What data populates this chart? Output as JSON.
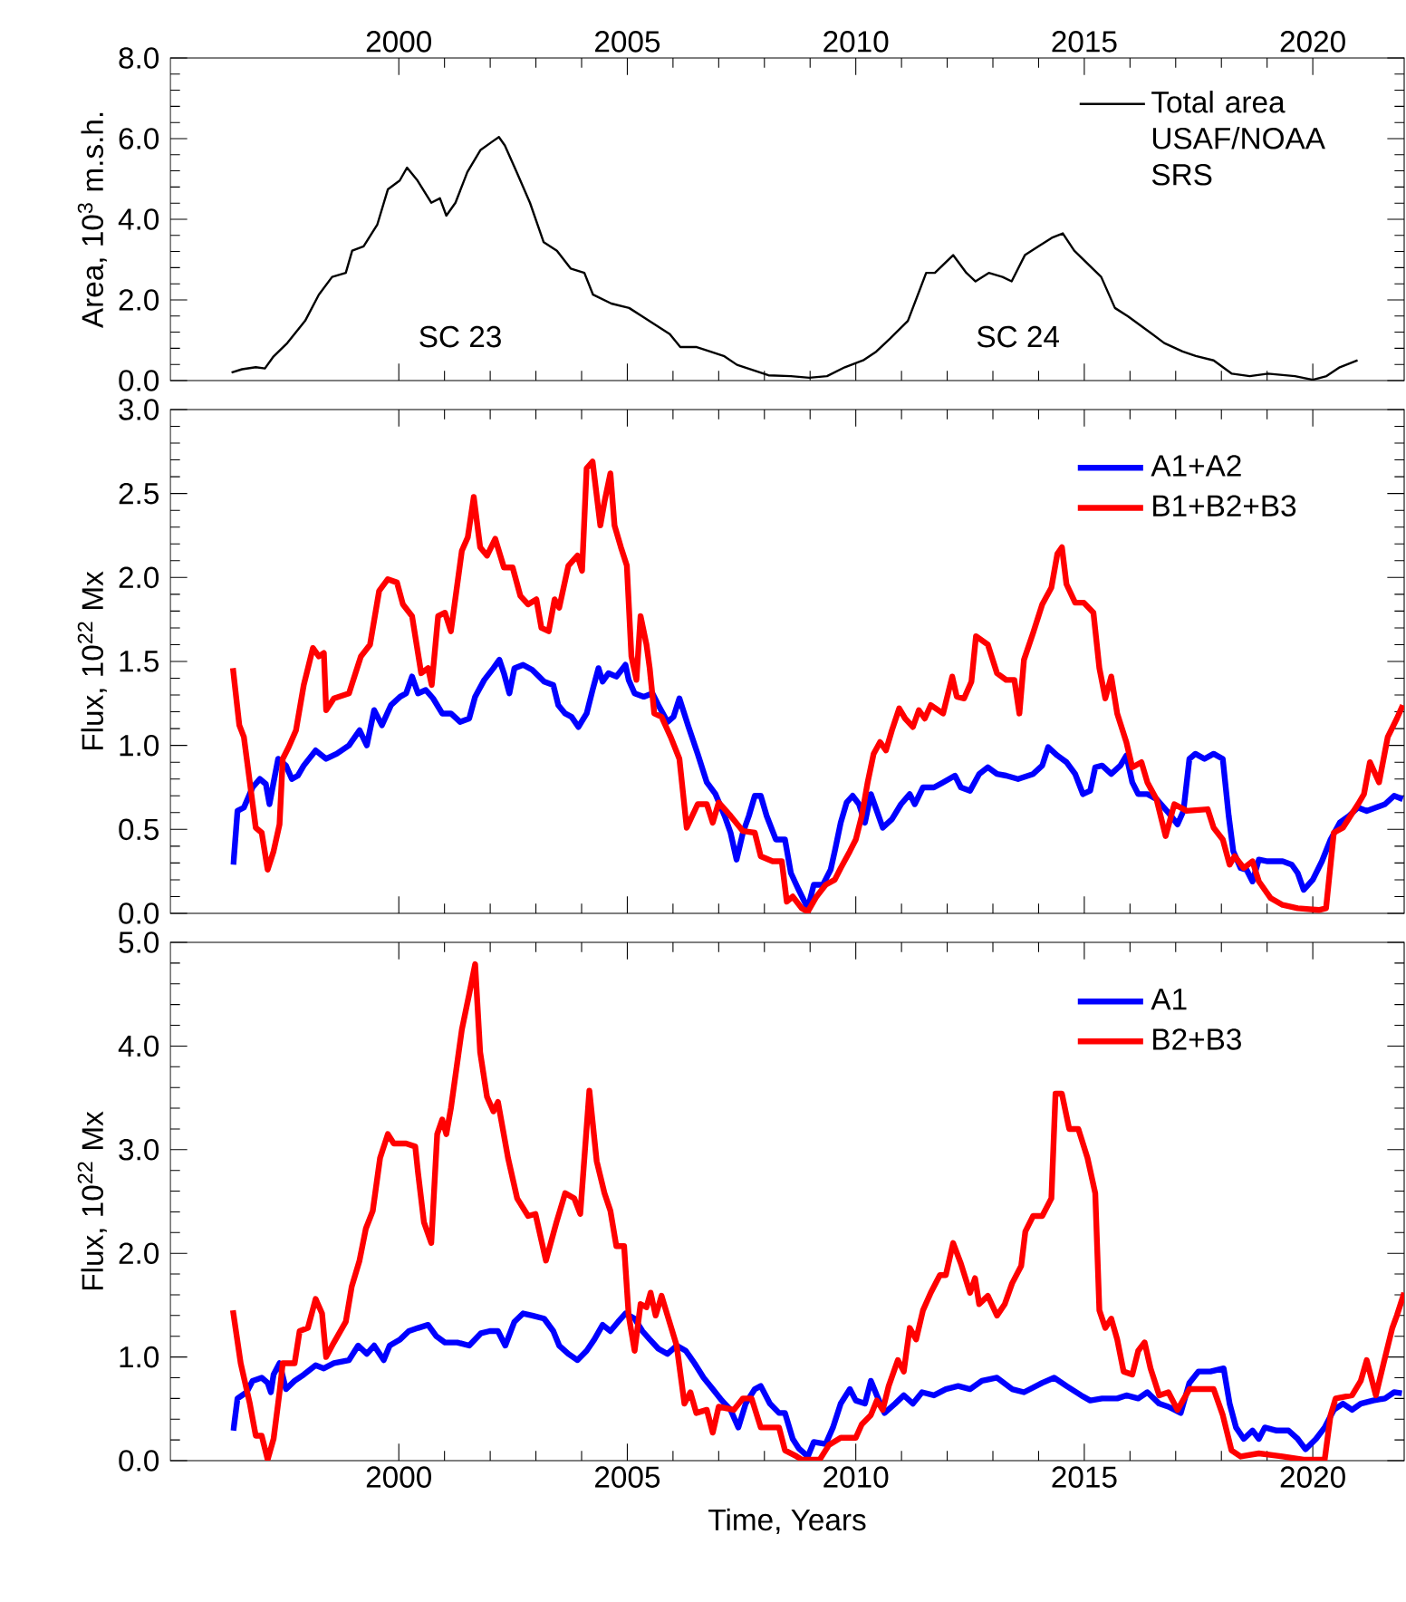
{
  "chart_data": [
    {
      "type": "line",
      "ylabel": "Area, 10$^{3}$ m.s.h.",
      "xlim": [
        1995,
        2022
      ],
      "xticks": [
        2000,
        2005,
        2010,
        2015,
        2020
      ],
      "ylim": [
        0,
        8
      ],
      "yticks": [
        {
          "value": 0,
          "label": "0.0"
        },
        {
          "value": 2,
          "label": "2.0"
        },
        {
          "value": 4,
          "label": "4.0"
        },
        {
          "value": 6,
          "label": "6.0"
        },
        {
          "value": 8,
          "label": "8.0"
        }
      ],
      "legend": "top right",
      "annotations": [
        "SC 23",
        "SC 24"
      ],
      "series": [
        {
          "name": "Total area USAF/NOAA SRS",
          "color": "#000000",
          "x": [
            1996.34,
            1996.57,
            1996.87,
            1997.07,
            1997.26,
            1997.56,
            1997.95,
            1998.25,
            1998.54,
            1998.84,
            1998.98,
            1999.23,
            1999.53,
            1999.76,
            2000.02,
            2000.18,
            2000.41,
            2000.71,
            2000.9,
            2001.04,
            2001.24,
            2001.5,
            2001.79,
            2002.05,
            2002.19,
            2002.32,
            2002.58,
            2002.87,
            2003.17,
            2003.46,
            2003.76,
            2004.06,
            2004.25,
            2004.65,
            2005.04,
            2005.33,
            2005.63,
            2005.93,
            2006.16,
            2006.52,
            2006.81,
            2007.11,
            2007.4,
            2007.7,
            2008.09,
            2008.58,
            2008.98,
            2009.37,
            2009.76,
            2010.16,
            2010.45,
            2010.75,
            2011.14,
            2011.54,
            2011.73,
            2012.13,
            2012.42,
            2012.62,
            2012.91,
            2013.21,
            2013.41,
            2013.7,
            2014.0,
            2014.29,
            2014.53,
            2014.78,
            2015.08,
            2015.37,
            2015.67,
            2015.96,
            2016.36,
            2016.75,
            2017.15,
            2017.44,
            2017.83,
            2018.23,
            2018.62,
            2019.02,
            2019.61,
            2020.0,
            2020.3,
            2020.59,
            2020.98
          ],
          "values": [
            0.2,
            0.28,
            0.33,
            0.3,
            0.6,
            0.93,
            1.48,
            2.13,
            2.57,
            2.67,
            3.22,
            3.33,
            3.87,
            4.74,
            4.96,
            5.28,
            4.96,
            4.41,
            4.52,
            4.09,
            4.41,
            5.17,
            5.72,
            5.93,
            6.04,
            5.83,
            5.17,
            4.41,
            3.43,
            3.22,
            2.78,
            2.67,
            2.13,
            1.91,
            1.8,
            1.59,
            1.37,
            1.15,
            0.83,
            0.83,
            0.72,
            0.61,
            0.39,
            0.28,
            0.13,
            0.11,
            0.07,
            0.11,
            0.33,
            0.5,
            0.72,
            1.04,
            1.48,
            2.67,
            2.67,
            3.11,
            2.67,
            2.46,
            2.67,
            2.57,
            2.46,
            3.11,
            3.33,
            3.54,
            3.65,
            3.22,
            2.89,
            2.57,
            1.8,
            1.59,
            1.26,
            0.93,
            0.72,
            0.61,
            0.5,
            0.17,
            0.11,
            0.17,
            0.11,
            0.02,
            0.11,
            0.33,
            0.5
          ]
        }
      ]
    },
    {
      "type": "line",
      "ylabel": "Flux, 10$^{22}$ Mx",
      "xlim": [
        1995,
        2022
      ],
      "xticks": [
        2000,
        2005,
        2010,
        2015,
        2020
      ],
      "tick_labels": "y",
      "ylim": [
        0,
        3
      ],
      "yticks": [
        {
          "value": 0,
          "label": "0.0"
        },
        {
          "value": 0.5,
          "label": "0.5"
        },
        {
          "value": 1,
          "label": "1.0"
        },
        {
          "value": 1.5,
          "label": "1.5"
        },
        {
          "value": 2,
          "label": "2.0"
        },
        {
          "value": 2.5,
          "label": "2.5"
        },
        {
          "value": 3,
          "label": "3.0"
        }
      ],
      "legend": "top right",
      "series": [
        {
          "name": "A1+A2",
          "color": "#0000ff",
          "x": [
            1996.38,
            1996.47,
            1996.61,
            1996.8,
            1996.96,
            1997.09,
            1997.17,
            1997.26,
            1997.36,
            1997.53,
            1997.66,
            1997.79,
            1997.92,
            1998.18,
            1998.41,
            1998.64,
            1998.91,
            1999.14,
            1999.3,
            1999.46,
            1999.63,
            1999.83,
            2000.03,
            2000.16,
            2000.29,
            2000.42,
            2000.59,
            2000.75,
            2000.95,
            2001.14,
            2001.34,
            2001.54,
            2001.67,
            2001.87,
            2002.07,
            2002.2,
            2002.3,
            2002.42,
            2002.53,
            2002.72,
            2002.92,
            2003.18,
            2003.38,
            2003.49,
            2003.64,
            2003.78,
            2003.93,
            2004.11,
            2004.24,
            2004.37,
            2004.46,
            2004.59,
            2004.76,
            2004.96,
            2005.03,
            2005.16,
            2005.36,
            2005.55,
            2005.68,
            2005.88,
            2006.01,
            2006.14,
            2006.34,
            2006.54,
            2006.74,
            2006.93,
            2007.13,
            2007.26,
            2007.39,
            2007.53,
            2007.66,
            2007.79,
            2007.92,
            2008.05,
            2008.25,
            2008.45,
            2008.58,
            2008.75,
            2008.95,
            2009.08,
            2009.28,
            2009.45,
            2009.54,
            2009.67,
            2009.8,
            2009.93,
            2010.07,
            2010.2,
            2010.33,
            2010.46,
            2010.59,
            2010.79,
            2010.99,
            2011.18,
            2011.29,
            2011.47,
            2011.71,
            2011.91,
            2012.17,
            2012.3,
            2012.5,
            2012.7,
            2012.89,
            2013.09,
            2013.29,
            2013.55,
            2013.88,
            2014.08,
            2014.21,
            2014.41,
            2014.61,
            2014.8,
            2014.97,
            2015.13,
            2015.24,
            2015.39,
            2015.59,
            2015.79,
            2015.92,
            2016.05,
            2016.18,
            2016.38,
            2016.58,
            2016.84,
            2017.04,
            2017.17,
            2017.3,
            2017.43,
            2017.63,
            2017.83,
            2018.03,
            2018.16,
            2018.26,
            2018.42,
            2018.55,
            2018.68,
            2018.82,
            2019.01,
            2019.34,
            2019.54,
            2019.67,
            2019.8,
            2020.0,
            2020.2,
            2020.39,
            2020.59,
            2020.79,
            2020.99,
            2021.18,
            2021.38,
            2021.58,
            2021.78,
            2021.97
          ],
          "values": [
            0.29,
            0.61,
            0.63,
            0.75,
            0.8,
            0.77,
            0.65,
            0.78,
            0.92,
            0.88,
            0.8,
            0.82,
            0.88,
            0.97,
            0.92,
            0.95,
            1.0,
            1.09,
            1.0,
            1.21,
            1.12,
            1.24,
            1.29,
            1.31,
            1.41,
            1.31,
            1.33,
            1.28,
            1.19,
            1.19,
            1.14,
            1.16,
            1.29,
            1.39,
            1.46,
            1.51,
            1.43,
            1.31,
            1.46,
            1.48,
            1.45,
            1.38,
            1.36,
            1.24,
            1.19,
            1.17,
            1.11,
            1.19,
            1.33,
            1.46,
            1.38,
            1.43,
            1.41,
            1.48,
            1.39,
            1.31,
            1.29,
            1.31,
            1.24,
            1.14,
            1.17,
            1.28,
            1.11,
            0.95,
            0.78,
            0.71,
            0.58,
            0.48,
            0.32,
            0.48,
            0.58,
            0.7,
            0.7,
            0.58,
            0.44,
            0.44,
            0.24,
            0.14,
            0.03,
            0.17,
            0.17,
            0.26,
            0.37,
            0.54,
            0.66,
            0.7,
            0.65,
            0.54,
            0.71,
            0.61,
            0.51,
            0.56,
            0.65,
            0.71,
            0.65,
            0.75,
            0.75,
            0.78,
            0.82,
            0.75,
            0.73,
            0.83,
            0.87,
            0.83,
            0.82,
            0.8,
            0.83,
            0.88,
            0.99,
            0.94,
            0.9,
            0.83,
            0.71,
            0.73,
            0.87,
            0.88,
            0.83,
            0.88,
            0.94,
            0.78,
            0.71,
            0.71,
            0.68,
            0.6,
            0.53,
            0.61,
            0.92,
            0.95,
            0.92,
            0.95,
            0.92,
            0.58,
            0.37,
            0.27,
            0.26,
            0.19,
            0.32,
            0.31,
            0.31,
            0.29,
            0.24,
            0.14,
            0.2,
            0.31,
            0.44,
            0.54,
            0.58,
            0.63,
            0.61,
            0.63,
            0.65,
            0.7,
            0.68
          ]
        },
        {
          "name": "B1+B2+B3",
          "color": "#ff0000",
          "x": [
            1996.37,
            1996.51,
            1996.61,
            1996.74,
            1996.87,
            1997.0,
            1997.13,
            1997.26,
            1997.39,
            1997.46,
            1997.59,
            1997.75,
            1997.92,
            1998.12,
            1998.25,
            1998.36,
            1998.41,
            1998.58,
            1998.91,
            1999.17,
            1999.37,
            1999.57,
            1999.76,
            1999.96,
            2000.09,
            2000.29,
            2000.49,
            2000.64,
            2000.72,
            2000.86,
            2001.01,
            2001.14,
            2001.38,
            2001.51,
            2001.64,
            2001.78,
            2001.93,
            2002.11,
            2002.3,
            2002.49,
            2002.66,
            2002.83,
            2003.01,
            2003.12,
            2003.28,
            2003.41,
            2003.51,
            2003.71,
            2003.91,
            2004.01,
            2004.11,
            2004.24,
            2004.41,
            2004.5,
            2004.63,
            2004.72,
            2004.86,
            2004.99,
            2005.09,
            2005.2,
            2005.29,
            2005.42,
            2005.49,
            2005.59,
            2005.75,
            2005.95,
            2006.14,
            2006.3,
            2006.54,
            2006.74,
            2006.87,
            2007.0,
            2007.26,
            2007.53,
            2007.79,
            2007.92,
            2008.18,
            2008.38,
            2008.49,
            2008.62,
            2008.82,
            2008.95,
            2009.14,
            2009.34,
            2009.54,
            2009.67,
            2009.87,
            2010.0,
            2010.13,
            2010.26,
            2010.39,
            2010.53,
            2010.66,
            2010.79,
            2010.95,
            2011.08,
            2011.25,
            2011.38,
            2011.51,
            2011.64,
            2011.91,
            2012.11,
            2012.21,
            2012.37,
            2012.53,
            2012.63,
            2012.89,
            2013.09,
            2013.29,
            2013.47,
            2013.58,
            2013.68,
            2013.88,
            2014.08,
            2014.28,
            2014.41,
            2014.51,
            2014.61,
            2014.8,
            2014.99,
            2015.2,
            2015.33,
            2015.46,
            2015.59,
            2015.72,
            2015.92,
            2016.05,
            2016.25,
            2016.38,
            2016.58,
            2016.78,
            2016.97,
            2017.24,
            2017.7,
            2017.83,
            2018.03,
            2018.18,
            2018.29,
            2018.49,
            2018.68,
            2018.82,
            2019.08,
            2019.34,
            2019.67,
            2020.13,
            2020.29,
            2020.46,
            2020.66,
            2020.99,
            2021.12,
            2021.25,
            2021.45,
            2021.64,
            2021.84,
            2021.97
          ],
          "values": [
            1.46,
            1.12,
            1.05,
            0.78,
            0.51,
            0.48,
            0.26,
            0.37,
            0.53,
            0.92,
            0.99,
            1.09,
            1.36,
            1.58,
            1.53,
            1.55,
            1.21,
            1.28,
            1.31,
            1.53,
            1.6,
            1.92,
            1.99,
            1.97,
            1.84,
            1.77,
            1.43,
            1.46,
            1.36,
            1.77,
            1.79,
            1.68,
            2.16,
            2.24,
            2.48,
            2.18,
            2.13,
            2.23,
            2.06,
            2.06,
            1.89,
            1.84,
            1.87,
            1.7,
            1.68,
            1.87,
            1.82,
            2.07,
            2.13,
            2.04,
            2.65,
            2.69,
            2.31,
            2.45,
            2.62,
            2.31,
            2.18,
            2.07,
            1.53,
            1.39,
            1.77,
            1.6,
            1.46,
            1.19,
            1.17,
            1.05,
            0.92,
            0.51,
            0.65,
            0.65,
            0.54,
            0.66,
            0.58,
            0.49,
            0.48,
            0.34,
            0.31,
            0.31,
            0.07,
            0.1,
            0.03,
            0.01,
            0.1,
            0.17,
            0.2,
            0.27,
            0.37,
            0.44,
            0.58,
            0.78,
            0.95,
            1.02,
            0.97,
            1.09,
            1.22,
            1.16,
            1.11,
            1.21,
            1.16,
            1.24,
            1.19,
            1.41,
            1.29,
            1.28,
            1.38,
            1.65,
            1.6,
            1.43,
            1.39,
            1.39,
            1.19,
            1.51,
            1.67,
            1.84,
            1.94,
            2.14,
            2.18,
            1.96,
            1.85,
            1.85,
            1.79,
            1.46,
            1.28,
            1.41,
            1.19,
            1.02,
            0.87,
            0.9,
            0.78,
            0.68,
            0.46,
            0.65,
            0.61,
            0.62,
            0.51,
            0.44,
            0.29,
            0.34,
            0.27,
            0.31,
            0.19,
            0.09,
            0.05,
            0.03,
            0.02,
            0.03,
            0.48,
            0.51,
            0.65,
            0.71,
            0.9,
            0.78,
            1.05,
            1.16,
            1.24
          ]
        }
      ]
    },
    {
      "type": "line",
      "ylabel": "Flux, 10$^{22}$ Mx",
      "xlabel": "Time, Years",
      "xlim": [
        1995,
        2022
      ],
      "xticks": [
        2000,
        2005,
        2010,
        2015,
        2020
      ],
      "ylim": [
        0,
        5
      ],
      "yticks": [
        {
          "value": 0,
          "label": "0.0"
        },
        {
          "value": 1,
          "label": "1.0"
        },
        {
          "value": 2,
          "label": "2.0"
        },
        {
          "value": 3,
          "label": "3.0"
        },
        {
          "value": 4,
          "label": "4.0"
        },
        {
          "value": 5,
          "label": "5.0"
        }
      ],
      "legend": "top right",
      "series": [
        {
          "name": "A1",
          "color": "#0000ff",
          "x": [
            1996.38,
            1996.47,
            1996.67,
            1996.8,
            1997.0,
            1997.13,
            1997.2,
            1997.26,
            1997.39,
            1997.53,
            1997.72,
            1997.92,
            1998.18,
            1998.36,
            1998.58,
            1998.91,
            1999.11,
            1999.3,
            1999.46,
            1999.67,
            1999.8,
            2000.03,
            2000.22,
            2000.42,
            2000.64,
            2000.82,
            2001.01,
            2001.28,
            2001.54,
            2001.8,
            2001.99,
            2002.17,
            2002.33,
            2002.53,
            2002.72,
            2002.92,
            2003.18,
            2003.38,
            2003.51,
            2003.71,
            2003.91,
            2004.11,
            2004.28,
            2004.46,
            2004.63,
            2004.8,
            2004.96,
            2005.16,
            2005.33,
            2005.49,
            2005.68,
            2005.88,
            2006.08,
            2006.28,
            2006.47,
            2006.67,
            2006.87,
            2007.07,
            2007.26,
            2007.43,
            2007.59,
            2007.79,
            2007.92,
            2008.12,
            2008.32,
            2008.45,
            2008.62,
            2008.75,
            2008.95,
            2009.08,
            2009.34,
            2009.5,
            2009.67,
            2009.87,
            2010.0,
            2010.2,
            2010.33,
            2010.46,
            2010.63,
            2010.86,
            2011.05,
            2011.25,
            2011.45,
            2011.71,
            2011.97,
            2012.24,
            2012.5,
            2012.76,
            2013.09,
            2013.42,
            2013.68,
            2014.08,
            2014.34,
            2014.61,
            2014.93,
            2015.13,
            2015.39,
            2015.72,
            2015.92,
            2016.18,
            2016.38,
            2016.64,
            2016.84,
            2017.11,
            2017.3,
            2017.5,
            2017.76,
            2018.05,
            2018.18,
            2018.32,
            2018.49,
            2018.68,
            2018.82,
            2018.95,
            2019.21,
            2019.47,
            2019.67,
            2019.84,
            2020.07,
            2020.26,
            2020.46,
            2020.66,
            2020.86,
            2021.05,
            2021.32,
            2021.58,
            2021.78,
            2021.95
          ],
          "values": [
            0.29,
            0.6,
            0.66,
            0.77,
            0.8,
            0.75,
            0.66,
            0.83,
            0.94,
            0.69,
            0.77,
            0.83,
            0.92,
            0.89,
            0.94,
            0.97,
            1.11,
            1.03,
            1.11,
            0.97,
            1.11,
            1.17,
            1.25,
            1.28,
            1.31,
            1.2,
            1.14,
            1.14,
            1.11,
            1.23,
            1.25,
            1.25,
            1.11,
            1.34,
            1.42,
            1.4,
            1.37,
            1.25,
            1.11,
            1.03,
            0.97,
            1.06,
            1.17,
            1.31,
            1.25,
            1.34,
            1.42,
            1.37,
            1.25,
            1.17,
            1.08,
            1.03,
            1.11,
            1.06,
            0.94,
            0.8,
            0.69,
            0.58,
            0.49,
            0.32,
            0.55,
            0.69,
            0.72,
            0.55,
            0.46,
            0.46,
            0.21,
            0.12,
            0.04,
            0.18,
            0.16,
            0.32,
            0.55,
            0.69,
            0.58,
            0.55,
            0.77,
            0.63,
            0.46,
            0.55,
            0.63,
            0.55,
            0.66,
            0.63,
            0.69,
            0.72,
            0.69,
            0.77,
            0.8,
            0.69,
            0.66,
            0.75,
            0.8,
            0.72,
            0.63,
            0.58,
            0.6,
            0.6,
            0.63,
            0.6,
            0.66,
            0.55,
            0.52,
            0.46,
            0.75,
            0.86,
            0.86,
            0.89,
            0.55,
            0.32,
            0.21,
            0.29,
            0.21,
            0.32,
            0.29,
            0.29,
            0.21,
            0.11,
            0.21,
            0.32,
            0.49,
            0.55,
            0.49,
            0.55,
            0.58,
            0.6,
            0.66,
            0.65
          ]
        },
        {
          "name": "B2+B3",
          "color": "#ff0000",
          "x": [
            1996.37,
            1996.54,
            1996.74,
            1996.87,
            1997.0,
            1997.13,
            1997.26,
            1997.39,
            1997.46,
            1997.72,
            1997.83,
            1998.01,
            1998.18,
            1998.32,
            1998.41,
            1998.58,
            1998.84,
            1998.97,
            1999.14,
            1999.28,
            1999.43,
            1999.59,
            1999.76,
            1999.89,
            2000.16,
            2000.36,
            2000.42,
            2000.55,
            2000.71,
            2000.84,
            2000.95,
            2001.04,
            2001.14,
            2001.38,
            2001.54,
            2001.67,
            2001.78,
            2001.93,
            2002.07,
            2002.17,
            2002.39,
            2002.59,
            2002.83,
            2002.99,
            2003.22,
            2003.45,
            2003.64,
            2003.84,
            2003.97,
            2004.17,
            2004.33,
            2004.5,
            2004.63,
            2004.76,
            2004.93,
            2005.03,
            2005.16,
            2005.29,
            2005.42,
            2005.51,
            2005.62,
            2005.75,
            2005.88,
            2006.08,
            2006.25,
            2006.38,
            2006.51,
            2006.74,
            2006.87,
            2007.0,
            2007.33,
            2007.53,
            2007.72,
            2007.92,
            2008.32,
            2008.45,
            2008.71,
            2008.82,
            2009.21,
            2009.41,
            2009.67,
            2010.0,
            2010.13,
            2010.33,
            2010.46,
            2010.59,
            2010.72,
            2010.92,
            2011.05,
            2011.18,
            2011.32,
            2011.47,
            2011.64,
            2011.84,
            2011.97,
            2012.13,
            2012.3,
            2012.5,
            2012.61,
            2012.7,
            2012.89,
            2013.09,
            2013.26,
            2013.42,
            2013.62,
            2013.71,
            2013.88,
            2014.08,
            2014.28,
            2014.37,
            2014.51,
            2014.67,
            2014.87,
            2015.07,
            2015.24,
            2015.33,
            2015.46,
            2015.59,
            2015.72,
            2015.86,
            2016.05,
            2016.18,
            2016.32,
            2016.45,
            2016.64,
            2016.84,
            2017.04,
            2017.3,
            2017.83,
            2018.03,
            2018.22,
            2018.42,
            2018.82,
            2019.34,
            2019.8,
            2020.26,
            2020.39,
            2020.5,
            2020.86,
            2021.05,
            2021.18,
            2021.38,
            2021.55,
            2021.74,
            2021.84,
            2022.0
          ],
          "values": [
            1.45,
            0.94,
            0.55,
            0.24,
            0.24,
            0.01,
            0.21,
            0.66,
            0.94,
            0.94,
            1.25,
            1.28,
            1.56,
            1.42,
            1.0,
            1.14,
            1.34,
            1.68,
            1.93,
            2.24,
            2.41,
            2.92,
            3.15,
            3.06,
            3.06,
            3.03,
            2.78,
            2.3,
            2.1,
            3.15,
            3.29,
            3.15,
            3.4,
            4.16,
            4.5,
            4.79,
            3.94,
            3.51,
            3.37,
            3.46,
            2.92,
            2.53,
            2.36,
            2.38,
            1.93,
            2.3,
            2.58,
            2.53,
            2.38,
            3.57,
            2.89,
            2.58,
            2.41,
            2.07,
            2.07,
            1.4,
            1.06,
            1.51,
            1.48,
            1.62,
            1.4,
            1.59,
            1.4,
            1.11,
            0.55,
            0.66,
            0.46,
            0.49,
            0.27,
            0.52,
            0.49,
            0.6,
            0.6,
            0.32,
            0.32,
            0.1,
            0.04,
            0.01,
            0.01,
            0.15,
            0.22,
            0.22,
            0.35,
            0.44,
            0.58,
            0.49,
            0.72,
            0.97,
            0.86,
            1.28,
            1.17,
            1.45,
            1.62,
            1.79,
            1.79,
            2.1,
            1.9,
            1.62,
            1.76,
            1.51,
            1.59,
            1.4,
            1.51,
            1.71,
            1.88,
            2.21,
            2.36,
            2.36,
            2.53,
            3.54,
            3.54,
            3.2,
            3.2,
            2.92,
            2.58,
            1.45,
            1.28,
            1.37,
            1.17,
            0.86,
            0.83,
            1.06,
            1.14,
            0.89,
            0.63,
            0.66,
            0.49,
            0.69,
            0.69,
            0.44,
            0.1,
            0.04,
            0.07,
            0.04,
            0.01,
            0.01,
            0.44,
            0.6,
            0.63,
            0.77,
            0.97,
            0.63,
            0.94,
            1.28,
            1.4,
            1.62
          ]
        }
      ]
    }
  ]
}
